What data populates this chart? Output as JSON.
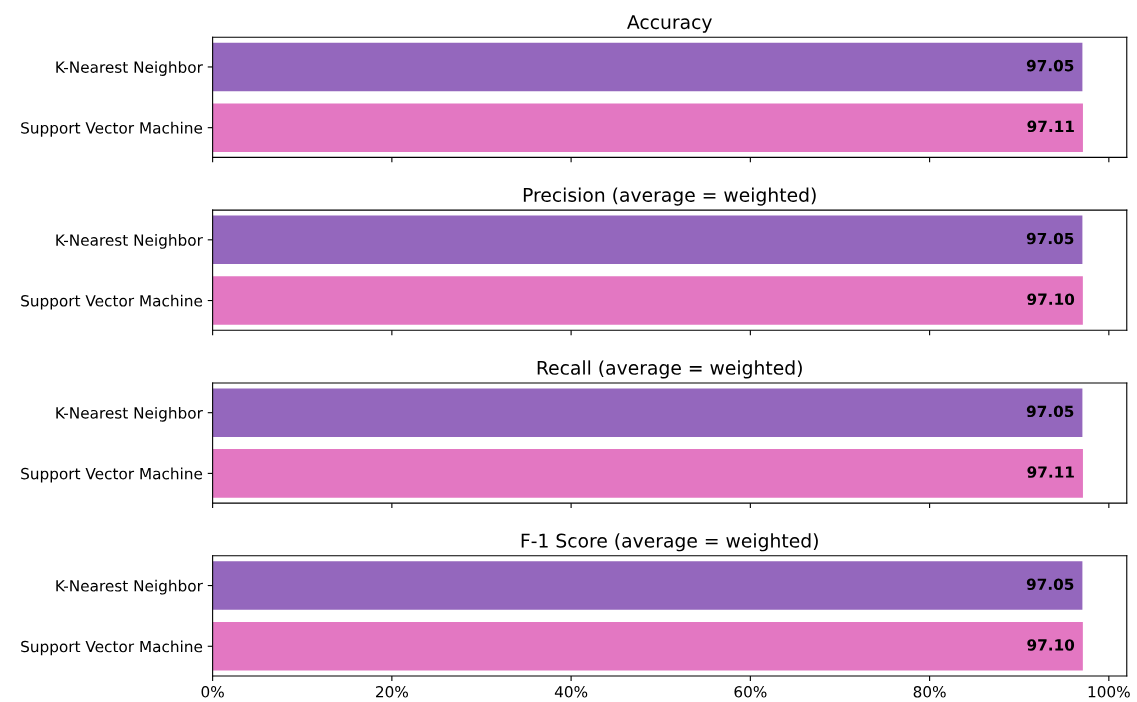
{
  "chart_data": [
    {
      "type": "bar",
      "orientation": "horizontal",
      "title": "Accuracy",
      "categories": [
        "K-Nearest Neighbor",
        "Support Vector Machine"
      ],
      "values": [
        97.05,
        97.11
      ],
      "colors": [
        "#9467bd",
        "#e377c2"
      ],
      "value_labels": [
        "97.05",
        "97.11"
      ],
      "xlim": [
        0,
        102
      ],
      "xticks": [
        {
          "value": 0,
          "label": null
        },
        {
          "value": 20,
          "label": null
        },
        {
          "value": 40,
          "label": null
        },
        {
          "value": 60,
          "label": null
        },
        {
          "value": 80,
          "label": null
        },
        {
          "value": 100,
          "label": null
        }
      ],
      "tick_labels": "y"
    },
    {
      "type": "bar",
      "orientation": "horizontal",
      "title": "Precision (average = weighted)",
      "categories": [
        "K-Nearest Neighbor",
        "Support Vector Machine"
      ],
      "values": [
        97.05,
        97.1
      ],
      "colors": [
        "#9467bd",
        "#e377c2"
      ],
      "value_labels": [
        "97.05",
        "97.10"
      ],
      "xlim": [
        0,
        102
      ],
      "xticks": [
        {
          "value": 0,
          "label": null
        },
        {
          "value": 20,
          "label": null
        },
        {
          "value": 40,
          "label": null
        },
        {
          "value": 60,
          "label": null
        },
        {
          "value": 80,
          "label": null
        },
        {
          "value": 100,
          "label": null
        }
      ],
      "tick_labels": "y"
    },
    {
      "type": "bar",
      "orientation": "horizontal",
      "title": "Recall (average = weighted)",
      "categories": [
        "K-Nearest Neighbor",
        "Support Vector Machine"
      ],
      "values": [
        97.05,
        97.11
      ],
      "colors": [
        "#9467bd",
        "#e377c2"
      ],
      "value_labels": [
        "97.05",
        "97.11"
      ],
      "xlim": [
        0,
        102
      ],
      "xticks": [
        {
          "value": 0,
          "label": null
        },
        {
          "value": 20,
          "label": null
        },
        {
          "value": 40,
          "label": null
        },
        {
          "value": 60,
          "label": null
        },
        {
          "value": 80,
          "label": null
        },
        {
          "value": 100,
          "label": null
        }
      ],
      "tick_labels": "y"
    },
    {
      "type": "bar",
      "orientation": "horizontal",
      "title": "F-1 Score (average = weighted)",
      "categories": [
        "K-Nearest Neighbor",
        "Support Vector Machine"
      ],
      "values": [
        97.05,
        97.1
      ],
      "colors": [
        "#9467bd",
        "#e377c2"
      ],
      "value_labels": [
        "97.05",
        "97.10"
      ],
      "xlim": [
        0,
        102
      ],
      "xticks": [
        {
          "value": 0,
          "label": "0%"
        },
        {
          "value": 20,
          "label": "20%"
        },
        {
          "value": 40,
          "label": "40%"
        },
        {
          "value": 60,
          "label": "60%"
        },
        {
          "value": 80,
          "label": "80%"
        },
        {
          "value": 100,
          "label": "100%"
        }
      ]
    }
  ]
}
